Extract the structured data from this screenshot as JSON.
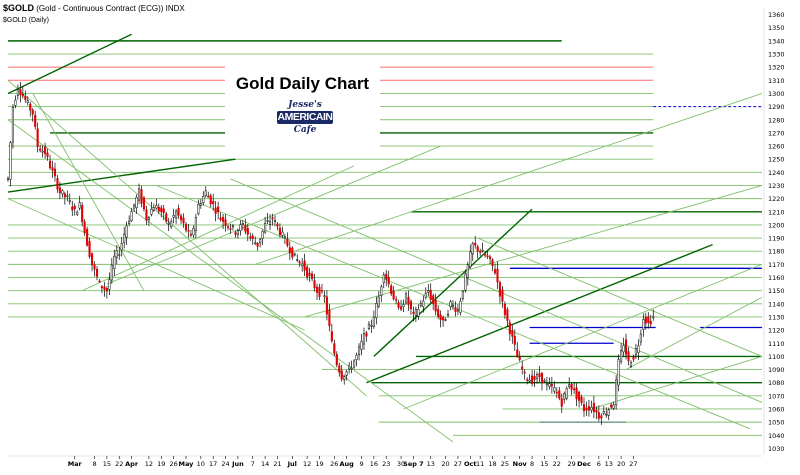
{
  "header": {
    "symbol": "$GOLD",
    "description": "(Gold - Continuous Contract (ECG)) INDX",
    "subtitle": "$GOLD (Daily)"
  },
  "title": "Gold Daily Chart",
  "logo": {
    "top": "Jesse's",
    "middle": "AMERICAIN",
    "bottom": "Cafe"
  },
  "colors": {
    "up": "#ffffff",
    "down": "#e00000",
    "candle_outline": "#000000",
    "trendline": "#7fbf6a",
    "support": "#006400",
    "resistance_red": "#ff6b6b",
    "blue_level": "#0000cc",
    "dashed_blue": "#0000cc"
  },
  "chart_data": {
    "type": "candlestick",
    "title": "Gold Daily Chart",
    "y_axis": {
      "position": "right",
      "ylim": [
        1025,
        1365
      ],
      "ticks": [
        1030,
        1040,
        1050,
        1060,
        1070,
        1080,
        1090,
        1100,
        1110,
        1120,
        1130,
        1140,
        1150,
        1160,
        1170,
        1180,
        1190,
        1200,
        1210,
        1220,
        1230,
        1240,
        1250,
        1260,
        1270,
        1280,
        1290,
        1300,
        1310,
        1320,
        1330,
        1340,
        1350,
        1360
      ]
    },
    "x_axis": {
      "labels": [
        {
          "day": 27,
          "text": "Mar",
          "bold": true
        },
        {
          "day": 35,
          "text": "8"
        },
        {
          "day": 40,
          "text": "15"
        },
        {
          "day": 45,
          "text": "22"
        },
        {
          "day": 50,
          "text": "Apr",
          "bold": true
        },
        {
          "day": 57,
          "text": "12"
        },
        {
          "day": 62,
          "text": "19"
        },
        {
          "day": 67,
          "text": "26"
        },
        {
          "day": 72,
          "text": "May",
          "bold": true
        },
        {
          "day": 78,
          "text": "10"
        },
        {
          "day": 83,
          "text": "17"
        },
        {
          "day": 88,
          "text": "24"
        },
        {
          "day": 93,
          "text": "Jun",
          "bold": true
        },
        {
          "day": 99,
          "text": "7"
        },
        {
          "day": 104,
          "text": "14"
        },
        {
          "day": 109,
          "text": "21"
        },
        {
          "day": 115,
          "text": "Jul",
          "bold": true
        },
        {
          "day": 121,
          "text": "12"
        },
        {
          "day": 126,
          "text": "19"
        },
        {
          "day": 132,
          "text": "26"
        },
        {
          "day": 137,
          "text": "Aug",
          "bold": true
        },
        {
          "day": 143,
          "text": "9"
        },
        {
          "day": 148,
          "text": "16"
        },
        {
          "day": 153,
          "text": "23"
        },
        {
          "day": 159,
          "text": "30"
        },
        {
          "day": 164,
          "text": "Sep 7",
          "bold": true
        },
        {
          "day": 171,
          "text": "13"
        },
        {
          "day": 177,
          "text": "20"
        },
        {
          "day": 182,
          "text": "27"
        },
        {
          "day": 187,
          "text": "Oct",
          "bold": true
        },
        {
          "day": 191,
          "text": "11"
        },
        {
          "day": 196,
          "text": "18"
        },
        {
          "day": 201,
          "text": "25"
        },
        {
          "day": 207,
          "text": "Nov",
          "bold": true
        },
        {
          "day": 212,
          "text": "8"
        },
        {
          "day": 217,
          "text": "15"
        },
        {
          "day": 222,
          "text": "22"
        },
        {
          "day": 228,
          "text": "29"
        },
        {
          "day": 233,
          "text": "Dec",
          "bold": true
        },
        {
          "day": 239,
          "text": "6"
        },
        {
          "day": 243,
          "text": "13"
        },
        {
          "day": 248,
          "text": "20"
        },
        {
          "day": 253,
          "text": "27"
        }
      ]
    },
    "price_path": [
      [
        0,
        1235
      ],
      [
        2,
        1290
      ],
      [
        4,
        1305
      ],
      [
        7,
        1295
      ],
      [
        10,
        1285
      ],
      [
        12,
        1260
      ],
      [
        15,
        1255
      ],
      [
        18,
        1240
      ],
      [
        21,
        1225
      ],
      [
        24,
        1220
      ],
      [
        27,
        1210
      ],
      [
        29,
        1215
      ],
      [
        31,
        1195
      ],
      [
        34,
        1170
      ],
      [
        37,
        1155
      ],
      [
        40,
        1150
      ],
      [
        43,
        1175
      ],
      [
        45,
        1180
      ],
      [
        48,
        1200
      ],
      [
        50,
        1210
      ],
      [
        53,
        1225
      ],
      [
        56,
        1205
      ],
      [
        59,
        1215
      ],
      [
        62,
        1210
      ],
      [
        65,
        1200
      ],
      [
        68,
        1210
      ],
      [
        71,
        1200
      ],
      [
        74,
        1190
      ],
      [
        77,
        1215
      ],
      [
        80,
        1225
      ],
      [
        83,
        1215
      ],
      [
        86,
        1205
      ],
      [
        89,
        1200
      ],
      [
        92,
        1195
      ],
      [
        95,
        1200
      ],
      [
        98,
        1190
      ],
      [
        101,
        1185
      ],
      [
        104,
        1200
      ],
      [
        107,
        1205
      ],
      [
        110,
        1195
      ],
      [
        113,
        1185
      ],
      [
        116,
        1175
      ],
      [
        119,
        1170
      ],
      [
        122,
        1160
      ],
      [
        125,
        1150
      ],
      [
        128,
        1145
      ],
      [
        131,
        1110
      ],
      [
        133,
        1095
      ],
      [
        135,
        1085
      ],
      [
        138,
        1090
      ],
      [
        141,
        1100
      ],
      [
        144,
        1115
      ],
      [
        147,
        1125
      ],
      [
        150,
        1145
      ],
      [
        152,
        1165
      ],
      [
        155,
        1150
      ],
      [
        158,
        1135
      ],
      [
        161,
        1145
      ],
      [
        164,
        1130
      ],
      [
        167,
        1140
      ],
      [
        170,
        1150
      ],
      [
        173,
        1135
      ],
      [
        176,
        1125
      ],
      [
        179,
        1140
      ],
      [
        182,
        1135
      ],
      [
        185,
        1160
      ],
      [
        188,
        1185
      ],
      [
        191,
        1180
      ],
      [
        194,
        1175
      ],
      [
        197,
        1165
      ],
      [
        200,
        1140
      ],
      [
        203,
        1120
      ],
      [
        206,
        1100
      ],
      [
        209,
        1085
      ],
      [
        212,
        1082
      ],
      [
        215,
        1085
      ],
      [
        218,
        1078
      ],
      [
        221,
        1075
      ],
      [
        224,
        1065
      ],
      [
        227,
        1080
      ],
      [
        230,
        1070
      ],
      [
        233,
        1060
      ],
      [
        236,
        1062
      ],
      [
        239,
        1055
      ],
      [
        242,
        1058
      ],
      [
        245,
        1065
      ],
      [
        247,
        1095
      ],
      [
        249,
        1110
      ],
      [
        251,
        1095
      ],
      [
        253,
        1100
      ],
      [
        255,
        1110
      ],
      [
        257,
        1130
      ],
      [
        259,
        1125
      ],
      [
        261,
        1130
      ]
    ],
    "horizontal_lines": [
      {
        "y": 1340,
        "x1": 0,
        "x2": 224,
        "style": "support"
      },
      {
        "y": 1330,
        "x1": 0,
        "x2": 261,
        "style": "trendline"
      },
      {
        "y": 1320,
        "x1": 0,
        "x2": 261,
        "style": "resistance_red"
      },
      {
        "y": 1310,
        "x1": 0,
        "x2": 261,
        "style": "resistance_red"
      },
      {
        "y": 1300,
        "x1": 0,
        "x2": 261,
        "style": "trendline"
      },
      {
        "y": 1290,
        "x1": 0,
        "x2": 261,
        "style": "trendline"
      },
      {
        "y": 1290,
        "x1": 261,
        "x2": 305,
        "style": "dashed_blue"
      },
      {
        "y": 1280,
        "x1": 0,
        "x2": 261,
        "style": "trendline"
      },
      {
        "y": 1270,
        "x1": 17,
        "x2": 261,
        "style": "support"
      },
      {
        "y": 1260,
        "x1": 0,
        "x2": 261,
        "style": "trendline"
      },
      {
        "y": 1250,
        "x1": 0,
        "x2": 261,
        "style": "trendline"
      },
      {
        "y": 1240,
        "x1": 0,
        "x2": 305,
        "style": "trendline"
      },
      {
        "y": 1230,
        "x1": 0,
        "x2": 305,
        "style": "trendline"
      },
      {
        "y": 1220,
        "x1": 0,
        "x2": 305,
        "style": "trendline"
      },
      {
        "y": 1210,
        "x1": 163,
        "x2": 305,
        "style": "support"
      },
      {
        "y": 1200,
        "x1": 0,
        "x2": 305,
        "style": "trendline"
      },
      {
        "y": 1190,
        "x1": 0,
        "x2": 305,
        "style": "trendline"
      },
      {
        "y": 1180,
        "x1": 0,
        "x2": 305,
        "style": "trendline"
      },
      {
        "y": 1170,
        "x1": 0,
        "x2": 305,
        "style": "trendline"
      },
      {
        "y": 1167,
        "x1": 203,
        "x2": 305,
        "style": "blue_level"
      },
      {
        "y": 1160,
        "x1": 0,
        "x2": 305,
        "style": "trendline"
      },
      {
        "y": 1150,
        "x1": 0,
        "x2": 305,
        "style": "trendline"
      },
      {
        "y": 1140,
        "x1": 0,
        "x2": 305,
        "style": "trendline"
      },
      {
        "y": 1130,
        "x1": 0,
        "x2": 305,
        "style": "trendline"
      },
      {
        "y": 1122,
        "x1": 211,
        "x2": 262,
        "style": "blue_level"
      },
      {
        "y": 1122,
        "x1": 280,
        "x2": 305,
        "style": "blue_level"
      },
      {
        "y": 1110,
        "x1": 211,
        "x2": 245,
        "style": "blue_level"
      },
      {
        "y": 1100,
        "x1": 165,
        "x2": 305,
        "style": "support"
      },
      {
        "y": 1090,
        "x1": 127,
        "x2": 305,
        "style": "trendline"
      },
      {
        "y": 1080,
        "x1": 147,
        "x2": 305,
        "style": "support"
      },
      {
        "y": 1070,
        "x1": 150,
        "x2": 305,
        "style": "trendline"
      },
      {
        "y": 1060,
        "x1": 200,
        "x2": 305,
        "style": "trendline"
      },
      {
        "y": 1050,
        "x1": 215,
        "x2": 250,
        "style": "blue_level"
      },
      {
        "y": 1050,
        "x1": 150,
        "x2": 305,
        "style": "trendline"
      },
      {
        "y": 1040,
        "x1": 180,
        "x2": 305,
        "style": "trendline"
      }
    ],
    "diagonal_lines": [
      {
        "x1": 0,
        "y1": 1300,
        "x2": 50,
        "y2": 1345,
        "style": "support"
      },
      {
        "x1": 0,
        "y1": 1225,
        "x2": 92,
        "y2": 1250,
        "style": "support"
      },
      {
        "x1": 148,
        "y1": 1100,
        "x2": 212,
        "y2": 1212,
        "style": "support"
      },
      {
        "x1": 145,
        "y1": 1080,
        "x2": 285,
        "y2": 1185,
        "style": "support"
      },
      {
        "x1": 0,
        "y1": 1310,
        "x2": 145,
        "y2": 1070,
        "style": "trendline"
      },
      {
        "x1": 0,
        "y1": 1280,
        "x2": 180,
        "y2": 1035,
        "style": "trendline"
      },
      {
        "x1": 0,
        "y1": 1220,
        "x2": 120,
        "y2": 1120,
        "style": "trendline"
      },
      {
        "x1": 10,
        "y1": 1300,
        "x2": 55,
        "y2": 1150,
        "style": "trendline"
      },
      {
        "x1": 30,
        "y1": 1150,
        "x2": 140,
        "y2": 1245,
        "style": "trendline"
      },
      {
        "x1": 40,
        "y1": 1155,
        "x2": 175,
        "y2": 1260,
        "style": "trendline"
      },
      {
        "x1": 60,
        "y1": 1230,
        "x2": 300,
        "y2": 1045,
        "style": "trendline"
      },
      {
        "x1": 90,
        "y1": 1235,
        "x2": 305,
        "y2": 1065,
        "style": "trendline"
      },
      {
        "x1": 190,
        "y1": 1190,
        "x2": 305,
        "y2": 1100,
        "style": "trendline"
      },
      {
        "x1": 236,
        "y1": 1060,
        "x2": 305,
        "y2": 1100,
        "style": "trendline"
      },
      {
        "x1": 250,
        "y1": 1090,
        "x2": 305,
        "y2": 1145,
        "style": "trendline"
      },
      {
        "x1": 160,
        "y1": 1060,
        "x2": 305,
        "y2": 1170,
        "style": "trendline"
      },
      {
        "x1": 120,
        "y1": 1130,
        "x2": 305,
        "y2": 1230,
        "style": "trendline"
      },
      {
        "x1": 100,
        "y1": 1170,
        "x2": 305,
        "y2": 1300,
        "style": "trendline"
      }
    ]
  }
}
